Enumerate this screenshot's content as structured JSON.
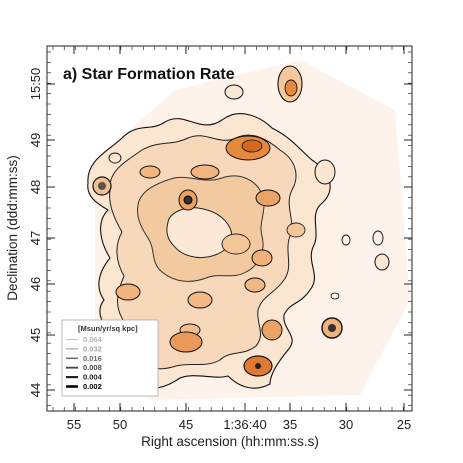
{
  "chart_data": {
    "type": "contour",
    "title": "a) Star Formation Rate",
    "xlabel": "Right ascension (hh:mm:ss.s)",
    "ylabel": "Declination (ddd:mm:ss)",
    "x_tick_labels": [
      "55",
      "50",
      "45",
      "1:36:40",
      "35",
      "30",
      "25"
    ],
    "y_tick_labels": [
      "44",
      "45",
      "46",
      "47",
      "48",
      "49",
      "15:50"
    ],
    "legend": {
      "title": "[Msun/yr/sq kpc]",
      "levels": [
        {
          "value": "0.064",
          "color": "#b8b8b8"
        },
        {
          "value": "0.032",
          "color": "#a8a8a8"
        },
        {
          "value": "0.016",
          "color": "#6a6a6a"
        },
        {
          "value": "0.008",
          "color": "#4a4a4a"
        },
        {
          "value": "0.004",
          "color": "#222222"
        },
        {
          "value": "0.002",
          "color": "#000000"
        }
      ],
      "placement": "bottom-left"
    },
    "colors": {
      "low": "#fff6ee",
      "mid": "#f3c79a",
      "high": "#e0782a",
      "contour": "#111111"
    }
  }
}
